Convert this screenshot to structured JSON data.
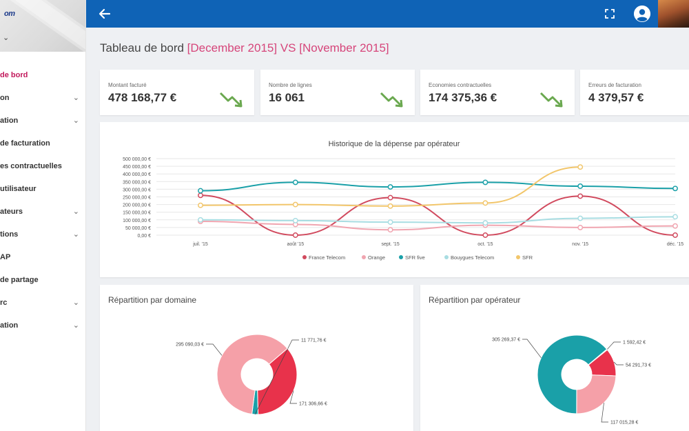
{
  "sidebar": {
    "logo": "om",
    "caret": "⌄",
    "items": [
      {
        "label": "de bord",
        "chevron": false,
        "active": true
      },
      {
        "label": "on",
        "chevron": true
      },
      {
        "label": "ation",
        "chevron": true
      },
      {
        "label": "de facturation",
        "chevron": false
      },
      {
        "label": "es contractuelles",
        "chevron": false
      },
      {
        "label": "utilisateur",
        "chevron": false
      },
      {
        "label": "ateurs",
        "chevron": true
      },
      {
        "label": "tions",
        "chevron": true
      },
      {
        "label": "AP",
        "chevron": false
      },
      {
        "label": "de partage",
        "chevron": false
      },
      {
        "label": "rc",
        "chevron": true
      },
      {
        "label": "ation",
        "chevron": true
      }
    ]
  },
  "header": {
    "back_icon": "arrow-left-icon",
    "fullscreen_icon": "fullscreen-icon",
    "avatar_icon": "user-avatar-icon"
  },
  "page": {
    "title": "Tableau de bord",
    "period_current": "[December 2015]",
    "vs": "VS",
    "period_previous": "[November 2015]"
  },
  "kpis": [
    {
      "label": "Montant facturé",
      "value": "478 168,77 €",
      "trend": "down"
    },
    {
      "label": "Nombre de lignes",
      "value": "16 061",
      "trend": "down"
    },
    {
      "label": "Economies contractuelles",
      "value": "174 375,36 €",
      "trend": "down"
    },
    {
      "label": "Erreurs de facturation",
      "value": "4 379,57 €",
      "trend": "down"
    }
  ],
  "colors": {
    "topbar": "#0f63b6",
    "accent": "#d6457a",
    "trend": "#6aa84f"
  },
  "chart_data": [
    {
      "type": "line",
      "title": "Historique de la dépense par opérateur",
      "categories": [
        "juil. '15",
        "août '15",
        "sept. '15",
        "oct. '15",
        "nov. '15",
        "déc. '15"
      ],
      "y_ticks": [
        "500 000,00 €",
        "450 000,00 €",
        "400 000,00 €",
        "350 000,00 €",
        "300 000,00 €",
        "250 000,00 €",
        "200 000,00 €",
        "150 000,00 €",
        "100 000,00 €",
        "50 000,00 €",
        "0,00 €"
      ],
      "ylim": [
        0,
        500000
      ],
      "smooth": true,
      "grid": true,
      "legend": "bottom",
      "series": [
        {
          "name": "France Telecom",
          "color": "#d14a5e",
          "values": [
            260000,
            0,
            245000,
            0,
            255000,
            0
          ]
        },
        {
          "name": "Orange",
          "color": "#f0a5b0",
          "values": [
            90000,
            70000,
            35000,
            65000,
            50000,
            60000
          ]
        },
        {
          "name": "SFR five",
          "color": "#1aa0a8",
          "values": [
            290000,
            345000,
            315000,
            345000,
            320000,
            305000
          ]
        },
        {
          "name": "Bouygues Telecom",
          "color": "#a8dde2",
          "values": [
            100000,
            95000,
            85000,
            80000,
            110000,
            120000
          ]
        },
        {
          "name": "SFR",
          "color": "#f2c66b",
          "values": [
            195000,
            200000,
            190000,
            210000,
            445000,
            null
          ]
        }
      ]
    },
    {
      "type": "pie",
      "title": "Répartition par domaine",
      "donut": true,
      "slices": [
        {
          "label": "171 306,66 €",
          "value": 171306.66,
          "color": "#e8324b"
        },
        {
          "label": "11 771,76 €",
          "value": 11771.76,
          "color": "#1aa0a8"
        },
        {
          "label": "295 090,03 €",
          "value": 295090.03,
          "color": "#f5a0a8"
        }
      ]
    },
    {
      "type": "pie",
      "title": "Répartition par opérateur",
      "donut": true,
      "slices": [
        {
          "label": "1 592,42 €",
          "value": 1592.42,
          "color": "#f2c66b"
        },
        {
          "label": "54 291,73 €",
          "value": 54291.73,
          "color": "#e8324b"
        },
        {
          "label": "117 015,28 €",
          "value": 117015.28,
          "color": "#f5a0a8"
        },
        {
          "label": "305 269,37 €",
          "value": 305269.37,
          "color": "#1aa0a8"
        }
      ]
    }
  ]
}
